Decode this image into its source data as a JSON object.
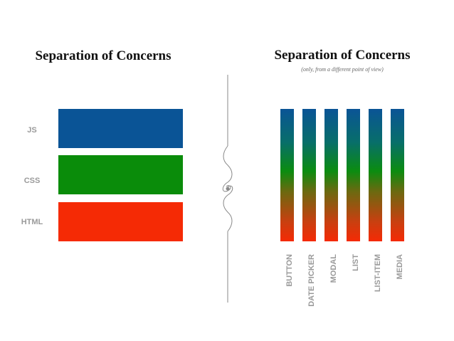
{
  "left": {
    "title": "Separation of Concerns",
    "layers": [
      "JS",
      "CSS",
      "HTML"
    ]
  },
  "right": {
    "title": "Separation of Concerns",
    "subtitle": "(only, from a different point of view)",
    "components": [
      "BUTTON",
      "DATE PICKER",
      "MODAL",
      "LIST",
      "LIST-ITEM",
      "MEDIA"
    ]
  }
}
